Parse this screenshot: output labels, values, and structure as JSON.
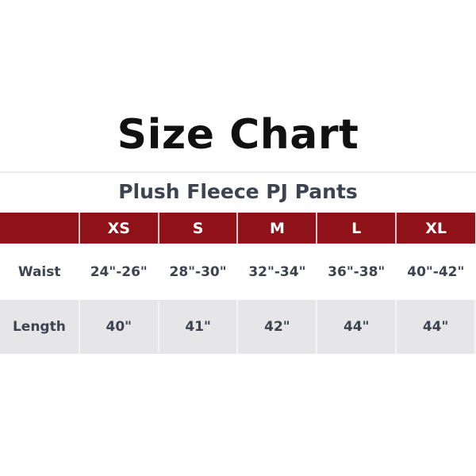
{
  "title": "Size Chart",
  "subtitle": "Plush Fleece PJ Pants",
  "colors": {
    "header_bg": "#8f1219",
    "alt_row_bg": "#e6e6e9",
    "text": "#3d4450"
  },
  "table": {
    "headers": [
      "",
      "XS",
      "S",
      "M",
      "L",
      "XL"
    ],
    "rows": [
      {
        "label": "Waist",
        "values": [
          "24\"-26\"",
          "28\"-30\"",
          "32\"-34\"",
          "36\"-38\"",
          "40\"-42\""
        ]
      },
      {
        "label": "Length",
        "values": [
          "40\"",
          "41\"",
          "42\"",
          "44\"",
          "44\""
        ]
      }
    ]
  }
}
